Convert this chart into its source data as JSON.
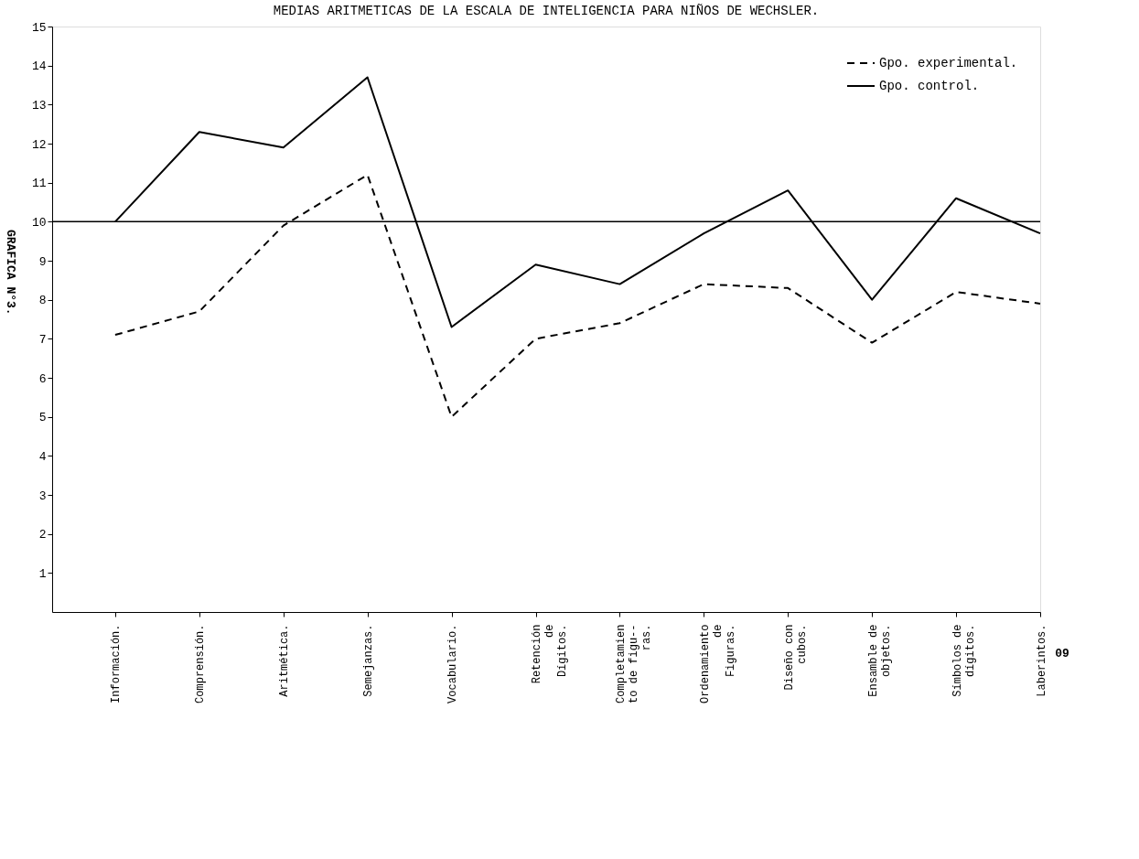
{
  "chart_data": {
    "type": "line",
    "title": "MEDIAS ARITMETICAS DE LA ESCALA DE INTELIGENCIA PARA NIÑOS DE WECHSLER.",
    "categories": [
      "Información.",
      "Comprensión.",
      "Aritmética.",
      "Semejanzas.",
      "Vocabulario.",
      "Retención\nde\nDígitos.",
      "Completamien\nto de figu--\nras.",
      "Ordenamiento\nde\nFiguras.",
      "Diseño con\ncubos.",
      "Ensamble de\nobjetos.",
      "Símbolos de\ndígitos.",
      "Laberintos."
    ],
    "series": [
      {
        "name": "Gpo. experimental.",
        "color": "#000000",
        "line_style": "dashed",
        "values": [
          7.1,
          7.7,
          9.9,
          11.2,
          5.0,
          7.0,
          7.4,
          8.4,
          8.3,
          6.9,
          8.2,
          7.9
        ]
      },
      {
        "name": "Gpo. control.",
        "color": "#000000",
        "line_style": "solid",
        "values": [
          10.0,
          12.3,
          11.9,
          13.7,
          7.3,
          8.9,
          8.4,
          9.7,
          10.8,
          8.0,
          10.6,
          9.7
        ]
      }
    ],
    "ylim": [
      0,
      15
    ],
    "yticks": [
      1,
      2,
      3,
      4,
      5,
      6,
      7,
      8,
      9,
      10,
      11,
      12,
      13,
      14,
      15
    ],
    "ref_lines": [
      {
        "axis": "y",
        "value": 10,
        "color": "#000000"
      }
    ],
    "annotations": [
      "GRAFICA N°3.",
      "09"
    ],
    "grid": false,
    "legend": "top right",
    "marker": "none"
  }
}
